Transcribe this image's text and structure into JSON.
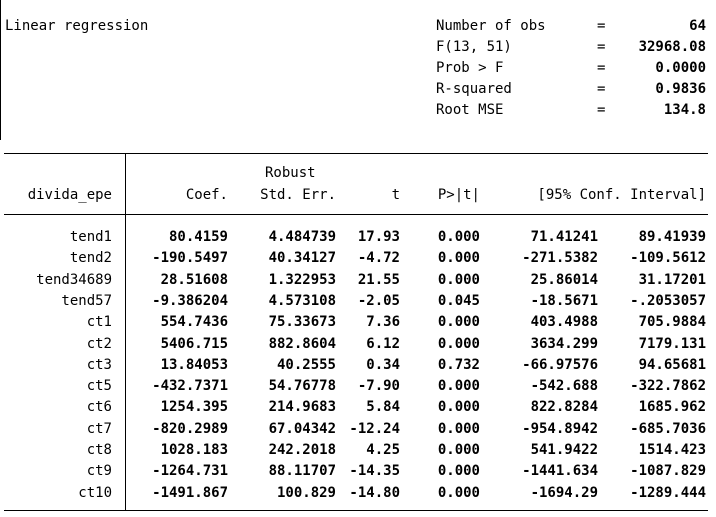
{
  "title": "Linear regression",
  "stats": [
    {
      "label": "Number of obs",
      "eq": "=",
      "value": "64"
    },
    {
      "label": "F(13, 51)",
      "eq": "=",
      "value": "32968.08"
    },
    {
      "label": "Prob > F",
      "eq": "=",
      "value": "0.0000"
    },
    {
      "label": "R-squared",
      "eq": "=",
      "value": "0.9836"
    },
    {
      "label": "Root MSE",
      "eq": "=",
      "value": "134.8"
    }
  ],
  "header": {
    "robust": "Robust",
    "depvar": "divida_epe",
    "coef": "Coef.",
    "se": "Std. Err.",
    "t": "t",
    "p": "P>|t|",
    "ci": "[95% Conf. Interval]"
  },
  "rows": [
    {
      "name": "tend1",
      "coef": "80.4159",
      "se": "4.484739",
      "t": "17.93",
      "p": "0.000",
      "lo": "71.41241",
      "hi": "89.41939"
    },
    {
      "name": "tend2",
      "coef": "-190.5497",
      "se": "40.34127",
      "t": "-4.72",
      "p": "0.000",
      "lo": "-271.5382",
      "hi": "-109.5612"
    },
    {
      "name": "tend34689",
      "coef": "28.51608",
      "se": "1.322953",
      "t": "21.55",
      "p": "0.000",
      "lo": "25.86014",
      "hi": "31.17201"
    },
    {
      "name": "tend57",
      "coef": "-9.386204",
      "se": "4.573108",
      "t": "-2.05",
      "p": "0.045",
      "lo": "-18.5671",
      "hi": "-.2053057"
    },
    {
      "name": "ct1",
      "coef": "554.7436",
      "se": "75.33673",
      "t": "7.36",
      "p": "0.000",
      "lo": "403.4988",
      "hi": "705.9884"
    },
    {
      "name": "ct2",
      "coef": "5406.715",
      "se": "882.8604",
      "t": "6.12",
      "p": "0.000",
      "lo": "3634.299",
      "hi": "7179.131"
    },
    {
      "name": "ct3",
      "coef": "13.84053",
      "se": "40.2555",
      "t": "0.34",
      "p": "0.732",
      "lo": "-66.97576",
      "hi": "94.65681"
    },
    {
      "name": "ct5",
      "coef": "-432.7371",
      "se": "54.76778",
      "t": "-7.90",
      "p": "0.000",
      "lo": "-542.688",
      "hi": "-322.7862"
    },
    {
      "name": "ct6",
      "coef": "1254.395",
      "se": "214.9683",
      "t": "5.84",
      "p": "0.000",
      "lo": "822.8284",
      "hi": "1685.962"
    },
    {
      "name": "ct7",
      "coef": "-820.2989",
      "se": "67.04342",
      "t": "-12.24",
      "p": "0.000",
      "lo": "-954.8942",
      "hi": "-685.7036"
    },
    {
      "name": "ct8",
      "coef": "1028.183",
      "se": "242.2018",
      "t": "4.25",
      "p": "0.000",
      "lo": "541.9422",
      "hi": "1514.423"
    },
    {
      "name": "ct9",
      "coef": "-1264.731",
      "se": "88.11707",
      "t": "-14.35",
      "p": "0.000",
      "lo": "-1441.634",
      "hi": "-1087.829"
    },
    {
      "name": "ct10",
      "coef": "-1491.867",
      "se": "100.829",
      "t": "-14.80",
      "p": "0.000",
      "lo": "-1694.29",
      "hi": "-1289.444"
    }
  ]
}
